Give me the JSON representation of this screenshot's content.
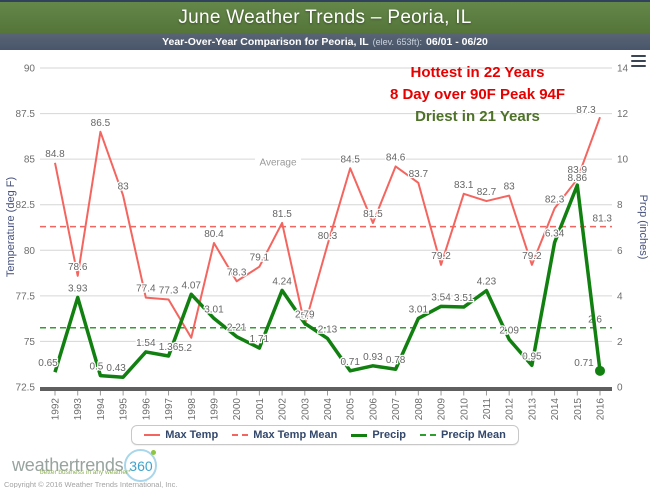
{
  "header": {
    "title": "June Weather Trends – Peoria, IL"
  },
  "subheader": {
    "main": "Year-Over-Year Comparison for Peoria, IL",
    "elevation": "(elev. 653ft):",
    "date_range": "06/01 - 06/20"
  },
  "chart_data": {
    "type": "line",
    "x": [
      1992,
      1993,
      1994,
      1995,
      1996,
      1997,
      1998,
      1999,
      2000,
      2001,
      2002,
      2003,
      2004,
      2005,
      2006,
      2007,
      2008,
      2009,
      2010,
      2011,
      2012,
      2013,
      2014,
      2015,
      2016
    ],
    "series": [
      {
        "name": "Max Temp",
        "axis": "left",
        "color": "#f4655f",
        "style": "solid",
        "values": [
          84.8,
          78.6,
          86.5,
          83,
          77.4,
          77.3,
          75.2,
          80.4,
          78.3,
          79.1,
          81.5,
          75.9,
          80.3,
          84.5,
          81.5,
          84.6,
          83.7,
          79.2,
          83.1,
          82.7,
          83,
          79.2,
          82.3,
          83.9,
          87.3
        ]
      },
      {
        "name": "Max Temp Mean",
        "axis": "left",
        "color": "#f4655f",
        "style": "dashed",
        "mean": 81.3
      },
      {
        "name": "Precip",
        "axis": "right",
        "color": "#118011",
        "style": "solid",
        "values": [
          0.65,
          3.93,
          0.5,
          0.43,
          1.54,
          1.36,
          4.07,
          3.01,
          2.21,
          1.71,
          4.24,
          2.79,
          2.13,
          0.71,
          0.93,
          0.78,
          3.01,
          3.54,
          3.51,
          4.23,
          2.09,
          0.95,
          6.34,
          8.86,
          0.71
        ]
      },
      {
        "name": "Precip Mean",
        "axis": "right",
        "color": "#2e9e2e",
        "style": "dashed",
        "mean": 2.6
      }
    ],
    "left_axis": {
      "title": "Temperature (deg F)",
      "min": 72.5,
      "max": 90,
      "ticks": [
        72.5,
        75,
        77.5,
        80,
        82.5,
        85,
        87.5,
        90
      ]
    },
    "right_axis": {
      "title": "Prcp (inches)",
      "min": 0,
      "max": 14,
      "ticks": [
        0,
        2,
        4,
        6,
        8,
        10,
        12,
        14
      ]
    },
    "plot_band_label": "Average",
    "grid": true,
    "legend_position": "bottom",
    "annotations": [
      "Hottest in 22 Years",
      "8 Day over 90F Peak 94F",
      "Driest in 21 Years"
    ]
  },
  "annotation_colors": {
    "red": "#e60000",
    "green": "#4e7228"
  },
  "legend": {
    "items": [
      {
        "label": "Max Temp"
      },
      {
        "label": "Max Temp Mean"
      },
      {
        "label": "Precip"
      },
      {
        "label": "Precip Mean"
      }
    ]
  },
  "footer": {
    "logo_text": "weathertrends",
    "logo_360": "360",
    "tagline": "better business in any weather*",
    "copyright": "Copyright © 2016  Weather Trends International, Inc."
  }
}
